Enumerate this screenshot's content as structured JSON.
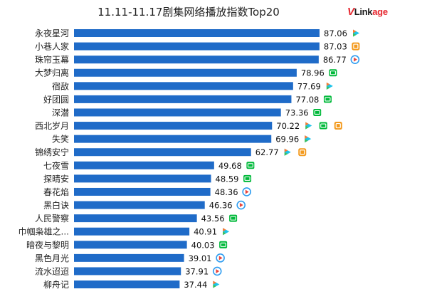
{
  "title": "11.11-11.17剧集网络播放指数Top20",
  "logo": {
    "v": "V",
    "main": "Link",
    "suffix": "age"
  },
  "platform_colors": {
    "tencent": "#2f9df0",
    "mango": "#f39a1e",
    "iqiyi": "#00b93a",
    "youku": "#1ec4ea"
  },
  "chart_data": {
    "type": "bar",
    "orientation": "horizontal",
    "title": "11.11-11.17剧集网络播放指数Top20",
    "xlim": [
      0,
      100
    ],
    "bar_color": "#1f6bc8",
    "grid": false,
    "categories": [
      "永夜星河",
      "小巷人家",
      "珠帘玉幕",
      "大梦归离",
      "宿敌",
      "好团圆",
      "深潜",
      "西北岁月",
      "失笑",
      "锦绣安宁",
      "七夜雪",
      "探晴安",
      "春花焰",
      "黑白诀",
      "人民警察",
      "巾帼枭雄之...",
      "暗夜与黎明",
      "黑色月光",
      "流水迢迢",
      "柳舟记"
    ],
    "values": [
      87.06,
      87.03,
      86.77,
      78.96,
      77.69,
      77.08,
      73.36,
      70.22,
      69.96,
      62.77,
      49.68,
      48.59,
      48.36,
      46.36,
      43.56,
      40.91,
      40.03,
      39.01,
      37.91,
      37.44
    ],
    "value_labels": [
      "87.06",
      "87.03",
      "86.77",
      "78.96",
      "77.69",
      "77.08",
      "73.36",
      "70.22",
      "69.96",
      "62.77",
      "49.68",
      "48.59",
      "48.36",
      "46.36",
      "43.56",
      "40.91",
      "40.03",
      "39.01",
      "37.91",
      "37.44"
    ],
    "platforms": [
      [
        "youku"
      ],
      [
        "mango"
      ],
      [
        "tencent"
      ],
      [
        "iqiyi"
      ],
      [
        "youku"
      ],
      [
        "iqiyi"
      ],
      [
        "iqiyi"
      ],
      [
        "youku",
        "iqiyi",
        "mango"
      ],
      [
        "youku"
      ],
      [
        "youku",
        "mango"
      ],
      [
        "iqiyi"
      ],
      [
        "iqiyi"
      ],
      [
        "tencent"
      ],
      [
        "tencent"
      ],
      [
        "iqiyi"
      ],
      [
        "youku"
      ],
      [
        "iqiyi"
      ],
      [
        "tencent"
      ],
      [
        "tencent"
      ],
      [
        "youku"
      ]
    ]
  }
}
